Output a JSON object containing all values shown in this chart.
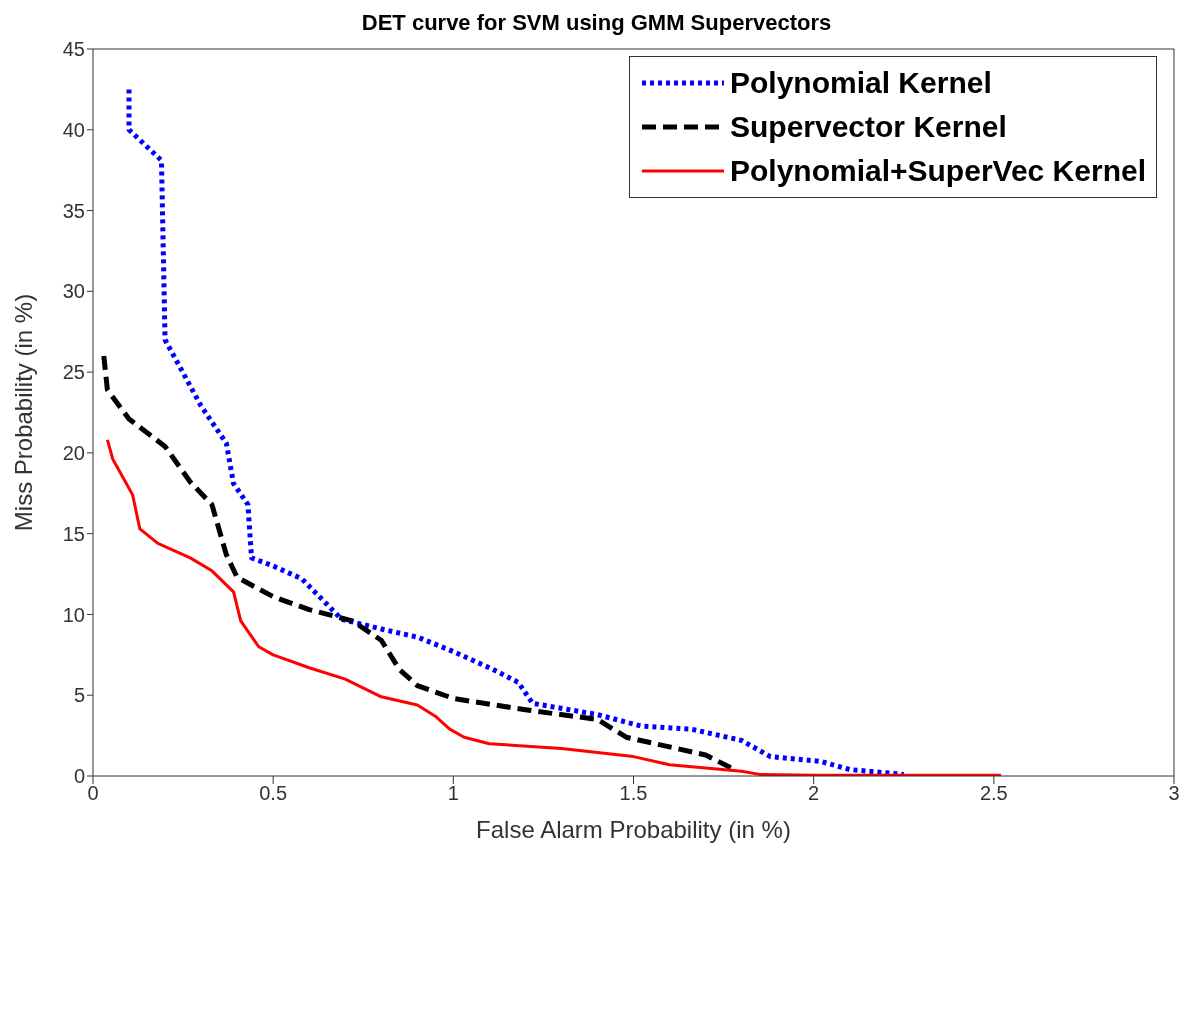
{
  "chart_data": {
    "type": "line",
    "title": "DET curve for SVM using GMM Supervectors",
    "xlabel": "False Alarm Probability (in %)",
    "ylabel": "Miss Probability (in %)",
    "xlim": [
      0,
      3
    ],
    "xticks": [
      0,
      0.5,
      1,
      1.5,
      2,
      2.5,
      3
    ],
    "ylim": [
      0,
      45
    ],
    "yticks": [
      0,
      5,
      10,
      15,
      20,
      25,
      30,
      35,
      40,
      45
    ],
    "grid": false,
    "legend": "top right",
    "series": [
      {
        "name": "Polynomial Kernel",
        "color": "#0000ff",
        "line_style": "dotted",
        "x": [
          0.1,
          0.1,
          0.19,
          0.2,
          0.3,
          0.37,
          0.39,
          0.43,
          0.44,
          0.5,
          0.58,
          0.69,
          0.8,
          0.9,
          1.0,
          1.11,
          1.18,
          1.22,
          1.4,
          1.52,
          1.66,
          1.8,
          1.88,
          2.02,
          2.1,
          2.25
        ],
        "values": [
          42.5,
          40,
          38.1,
          27,
          22.9,
          20.6,
          18.1,
          16.8,
          13.5,
          13,
          12.2,
          9.7,
          9.1,
          8.6,
          7.7,
          6.6,
          5.8,
          4.5,
          3.8,
          3.1,
          2.9,
          2.2,
          1.2,
          0.9,
          0.4,
          0.1
        ]
      },
      {
        "name": "Supervector Kernel",
        "color": "#000000",
        "line_style": "dashed",
        "x": [
          0.03,
          0.04,
          0.1,
          0.2,
          0.27,
          0.33,
          0.37,
          0.4,
          0.5,
          0.6,
          0.72,
          0.8,
          0.85,
          0.9,
          1.0,
          1.2,
          1.4,
          1.48,
          1.6,
          1.7,
          1.78
        ],
        "values": [
          26,
          23.9,
          22.1,
          20.4,
          18.2,
          16.8,
          13.7,
          12.3,
          11.1,
          10.3,
          9.6,
          8.4,
          6.6,
          5.6,
          4.8,
          4.1,
          3.5,
          2.4,
          1.8,
          1.3,
          0.4
        ]
      },
      {
        "name": "Polynomial+SuperVec Kernel",
        "color": "#ff0000",
        "line_style": "solid",
        "x": [
          0.04,
          0.055,
          0.11,
          0.13,
          0.18,
          0.27,
          0.33,
          0.39,
          0.41,
          0.46,
          0.5,
          0.6,
          0.7,
          0.8,
          0.9,
          0.95,
          0.99,
          1.03,
          1.1,
          1.3,
          1.5,
          1.6,
          1.8,
          1.85,
          2.0,
          2.52
        ],
        "values": [
          20.8,
          19.6,
          17.4,
          15.3,
          14.4,
          13.5,
          12.7,
          11.4,
          9.6,
          8.0,
          7.5,
          6.7,
          6.0,
          4.9,
          4.4,
          3.7,
          2.9,
          2.4,
          2.0,
          1.7,
          1.2,
          0.7,
          0.3,
          0.1,
          0.05,
          0.05
        ]
      }
    ]
  }
}
